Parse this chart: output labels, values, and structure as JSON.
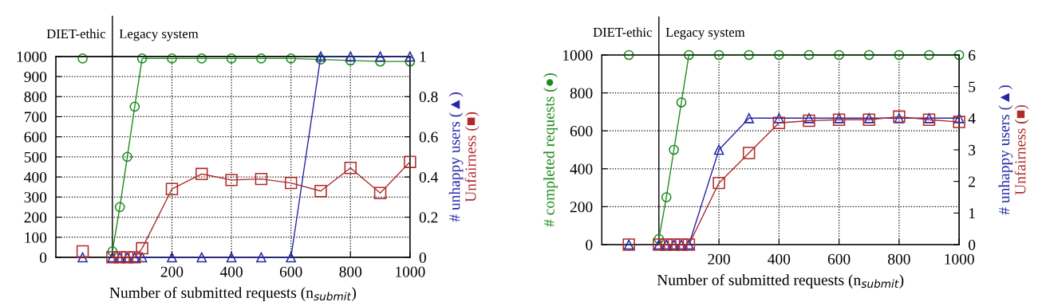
{
  "chart_data": [
    {
      "type": "line",
      "xlabel": "Number of submitted requests (n$_{submit}$)",
      "y2label": [
        "# unhappy users (▲)",
        "Unfairness (■)"
      ],
      "xlim": [
        -190,
        1000
      ],
      "xticks": [
        200,
        400,
        600,
        800,
        1000
      ],
      "ylim": [
        0,
        1000
      ],
      "yticks": [
        0,
        100,
        200,
        300,
        400,
        500,
        600,
        700,
        800,
        900,
        1000
      ],
      "y2lim": [
        0,
        1
      ],
      "y2ticks": [
        0,
        0.2,
        0.4,
        0.6,
        0.8,
        1
      ],
      "grid": true,
      "line_style": "solid",
      "legend": false,
      "ref_lines": [
        {
          "axis": "x",
          "value": 0,
          "label": null,
          "color": "#000000"
        }
      ],
      "annotations": [
        "DIET-ethic",
        "Legacy system"
      ],
      "series": [
        {
          "color": "#1e8c1e",
          "marker": "circle",
          "x": [
            0,
            25,
            50,
            75,
            100,
            200,
            300,
            400,
            500,
            600,
            700,
            800,
            900,
            1000
          ],
          "values": [
            30,
            250,
            500,
            750,
            990,
            990,
            990,
            990,
            990,
            990,
            985,
            980,
            975,
            975
          ]
        },
        {
          "color": "#2626a8",
          "marker": "triangle",
          "axis": "y2",
          "x": [
            0,
            25,
            50,
            75,
            100,
            200,
            300,
            400,
            500,
            600,
            700,
            800,
            900,
            1000
          ],
          "values": [
            0,
            0,
            0,
            0,
            0,
            0,
            0,
            0,
            0,
            0,
            1,
            1,
            1,
            1
          ]
        },
        {
          "color": "#b02a2a",
          "marker": "square",
          "axis": "y2",
          "x": [
            0,
            25,
            50,
            75,
            100,
            200,
            300,
            400,
            500,
            600,
            700,
            800,
            900,
            1000
          ],
          "values": [
            0,
            0,
            0,
            0,
            0.045,
            0.34,
            0.415,
            0.385,
            0.39,
            0.37,
            0.33,
            0.445,
            0.32,
            0.475
          ]
        },
        {
          "type": "scatter",
          "color": "#1e8c1e",
          "marker": "circle",
          "x": [
            -100
          ],
          "values": [
            990
          ]
        },
        {
          "type": "scatter",
          "color": "#2626a8",
          "marker": "triangle",
          "axis": "y2",
          "x": [
            -100
          ],
          "values": [
            0
          ]
        },
        {
          "type": "scatter",
          "color": "#b02a2a",
          "marker": "square",
          "axis": "y2",
          "x": [
            -100
          ],
          "values": [
            0.03
          ]
        }
      ]
    },
    {
      "type": "line",
      "xlabel": "Number of submitted requests (n$_{submit}$)",
      "ylabel": "# completed requests (●)",
      "y2label": [
        "# unhappy users (▲)",
        "Unfairness (■)"
      ],
      "xlim": [
        -190,
        1000
      ],
      "xticks": [
        200,
        400,
        600,
        800,
        1000
      ],
      "ylim": [
        0,
        1000
      ],
      "yticks": [
        0,
        200,
        400,
        600,
        800,
        1000
      ],
      "y2lim": [
        0,
        6
      ],
      "y2ticks": [
        0,
        1,
        2,
        3,
        4,
        5,
        6
      ],
      "grid": true,
      "line_style": "solid",
      "legend": false,
      "ref_lines": [
        {
          "axis": "x",
          "value": 0,
          "label": null,
          "color": "#000000"
        }
      ],
      "annotations": [
        "DIET-ethic",
        "Legacy system"
      ],
      "series": [
        {
          "color": "#1e8c1e",
          "marker": "circle",
          "x": [
            0,
            25,
            50,
            75,
            100,
            200,
            300,
            400,
            500,
            600,
            700,
            800,
            900,
            1000
          ],
          "values": [
            30,
            250,
            500,
            750,
            1000,
            1000,
            1000,
            1000,
            1000,
            1000,
            1000,
            1000,
            1000,
            1000
          ]
        },
        {
          "color": "#2626a8",
          "marker": "triangle",
          "axis": "y2",
          "x": [
            0,
            25,
            50,
            75,
            100,
            200,
            300,
            400,
            500,
            600,
            700,
            800,
            900,
            1000
          ],
          "values": [
            0,
            0,
            0,
            0,
            0,
            3,
            4,
            4,
            4,
            4,
            4,
            4,
            4,
            4
          ]
        },
        {
          "color": "#b02a2a",
          "marker": "square",
          "axis": "y2",
          "x": [
            0,
            25,
            50,
            75,
            100,
            200,
            300,
            400,
            500,
            600,
            700,
            800,
            900,
            1000
          ],
          "values": [
            0,
            0,
            0,
            0,
            0,
            1.95,
            2.9,
            3.85,
            3.92,
            3.95,
            3.95,
            4.05,
            3.95,
            3.88
          ]
        },
        {
          "type": "scatter",
          "color": "#1e8c1e",
          "marker": "circle",
          "x": [
            -100
          ],
          "values": [
            1000
          ]
        },
        {
          "type": "scatter",
          "color": "#2626a8",
          "marker": "triangle",
          "axis": "y2",
          "x": [
            -100
          ],
          "values": [
            0
          ]
        },
        {
          "type": "scatter",
          "color": "#b02a2a",
          "marker": "square",
          "axis": "y2",
          "x": [
            -100
          ],
          "values": [
            0
          ]
        }
      ]
    }
  ]
}
